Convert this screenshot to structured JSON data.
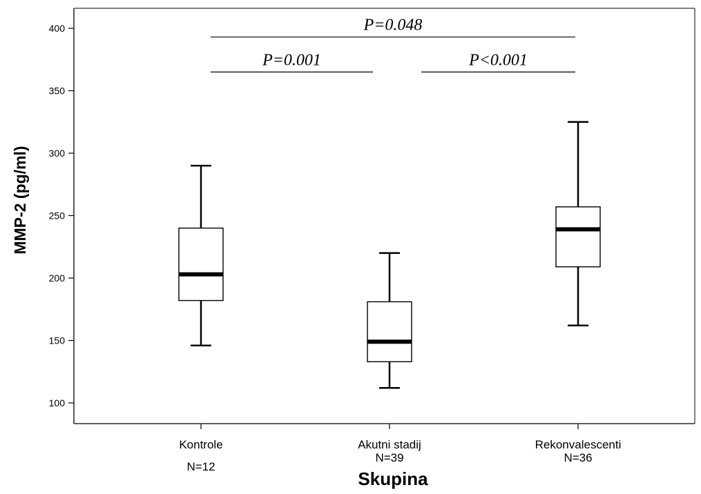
{
  "chart_data": {
    "type": "boxplot",
    "title": "",
    "xlabel": "Skupina",
    "ylabel": "MMP-2 (pg/ml)",
    "ylim": [
      85,
      410
    ],
    "yticks": [
      100,
      150,
      200,
      250,
      300,
      350,
      400
    ],
    "grid": false,
    "categories": [
      "Kontrole",
      "Akutni stadij",
      "Rekonvalescenti"
    ],
    "counts": [
      "N=12",
      "N=39",
      "N=36"
    ],
    "boxes": [
      {
        "category": "Kontrole",
        "min": 146,
        "q1": 182,
        "median": 203,
        "q3": 240,
        "max": 290
      },
      {
        "category": "Akutni stadij",
        "min": 112,
        "q1": 133,
        "median": 149,
        "q3": 181,
        "max": 220
      },
      {
        "category": "Rekonvalescenti",
        "min": 162,
        "q1": 209,
        "median": 239,
        "q3": 257,
        "max": 325
      }
    ],
    "comparisons": [
      {
        "label": "P=0.048",
        "from": 0,
        "to": 2,
        "level": 393
      },
      {
        "label": "P=0.001",
        "from": 0,
        "to": 1,
        "level": 365
      },
      {
        "label": "P<0.001",
        "from": 1,
        "to": 2,
        "level": 365
      }
    ]
  }
}
